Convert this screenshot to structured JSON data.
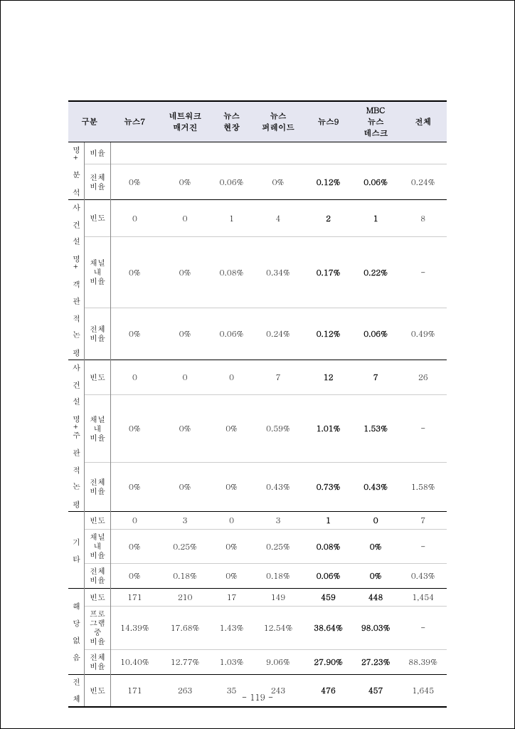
{
  "page_number": "- 119 -",
  "header": {
    "c0": "구분",
    "c1": "뉴스7",
    "c2": "네트워크\n매거진",
    "c3": "뉴스\n현장",
    "c4": "뉴스\n퍼레이드",
    "c5": "뉴스9",
    "c6": "MBC\n뉴스\n데스크",
    "c7": "전체"
  },
  "col_style": {
    "header_bg": "#e5e6f1"
  },
  "groups": [
    {
      "label": "명+ 분 석",
      "metrics": [
        {
          "name": "비율",
          "v": [
            "",
            "",
            "",
            "",
            "",
            "",
            ""
          ]
        },
        {
          "name": "전체\n비율",
          "v": [
            "0%",
            "0%",
            "0.06%",
            "0%",
            "0.12%",
            "0.06%",
            "0.24%"
          ]
        }
      ]
    },
    {
      "label": "사 건 설 명+ 객 관 적 논 평",
      "metrics": [
        {
          "name": "빈도",
          "v": [
            "0",
            "0",
            "1",
            "4",
            "2",
            "1",
            "8"
          ]
        },
        {
          "name": "채널\n내\n비율",
          "v": [
            "0%",
            "0%",
            "0.08%",
            "0.34%",
            "0.17%",
            "0.22%",
            "-"
          ]
        },
        {
          "name": "전체\n비율",
          "v": [
            "0%",
            "0%",
            "0.06%",
            "0.24%",
            "0.12%",
            "0.06%",
            "0.49%"
          ]
        }
      ]
    },
    {
      "label": "사 건 설 명+주 관 적 논 평",
      "metrics": [
        {
          "name": "빈도",
          "v": [
            "0",
            "0",
            "0",
            "7",
            "12",
            "7",
            "26"
          ]
        },
        {
          "name": "채널\n내\n비율",
          "v": [
            "0%",
            "0%",
            "0%",
            "0.59%",
            "1.01%",
            "1.53%",
            "-"
          ]
        },
        {
          "name": "전체\n비율",
          "v": [
            "0%",
            "0%",
            "0%",
            "0.43%",
            "0.73%",
            "0.43%",
            "1.58%"
          ]
        }
      ]
    },
    {
      "label": "기 타",
      "metrics": [
        {
          "name": "빈도",
          "v": [
            "0",
            "3",
            "0",
            "3",
            "1",
            "0",
            "7"
          ]
        },
        {
          "name": "채널\n내\n비율",
          "v": [
            "0%",
            "0.25%",
            "0%",
            "0.25%",
            "0.08%",
            "0%",
            "-"
          ]
        },
        {
          "name": "전체\n비율",
          "v": [
            "0%",
            "0.18%",
            "0%",
            "0.18%",
            "0.06%",
            "0%",
            "0.43%"
          ]
        }
      ]
    },
    {
      "label": "해 당 없 음",
      "metrics": [
        {
          "name": "빈도",
          "v": [
            "171",
            "210",
            "17",
            "149",
            "459",
            "448",
            "1,454"
          ]
        },
        {
          "name": "프로\n그램\n중\n비율",
          "v": [
            "14.39%",
            "17.68%",
            "1.43%",
            "12.54%",
            "38.64%",
            "98.03%",
            "-"
          ]
        },
        {
          "name": "전체\n비율",
          "v": [
            "10.40%",
            "12.77%",
            "1.03%",
            "9.06%",
            "27.90%",
            "27.23%",
            "88.39%"
          ]
        }
      ]
    },
    {
      "label": "전 체",
      "metrics": [
        {
          "name": "빈도",
          "v": [
            "171",
            "263",
            "35",
            "243",
            "476",
            "457",
            "1,645"
          ]
        }
      ]
    }
  ]
}
